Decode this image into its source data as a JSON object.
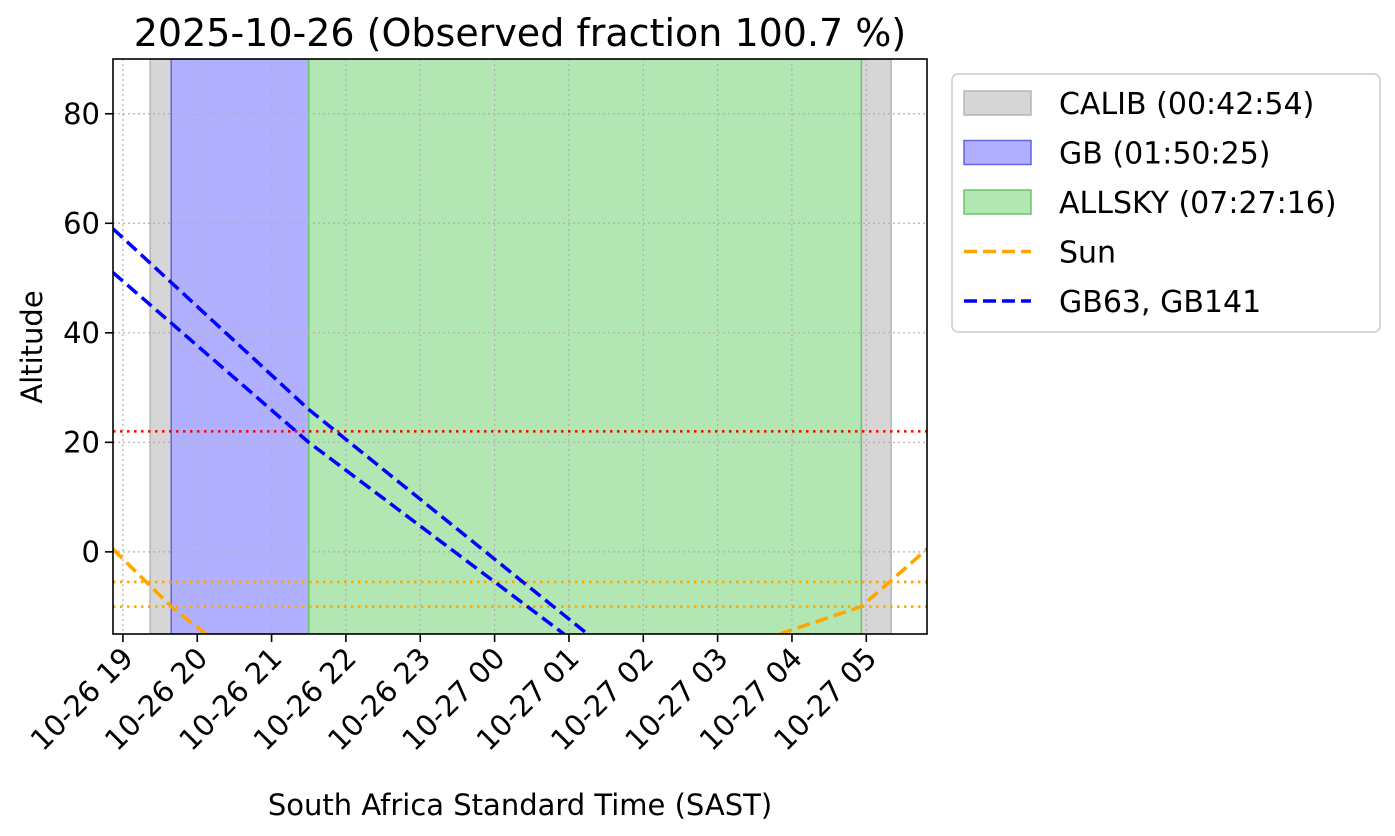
{
  "chart_data": {
    "type": "line",
    "title": "2025-10-26 (Observed fraction 100.7 %)",
    "xlabel": "South Africa Standard Time (SAST)",
    "ylabel": "Altitude",
    "x_range": [
      "2025-10-26 18:52",
      "2025-10-27 05:49"
    ],
    "ylim": [
      -15,
      90
    ],
    "grid": true,
    "legend_position": "outside right, top",
    "x_ticks": [
      {
        "t": "2025-10-26 19:00",
        "label": "10-26 19"
      },
      {
        "t": "2025-10-26 20:00",
        "label": "10-26 20"
      },
      {
        "t": "2025-10-26 21:00",
        "label": "10-26 21"
      },
      {
        "t": "2025-10-26 22:00",
        "label": "10-26 22"
      },
      {
        "t": "2025-10-26 23:00",
        "label": "10-26 23"
      },
      {
        "t": "2025-10-27 00:00",
        "label": "10-27 00"
      },
      {
        "t": "2025-10-27 01:00",
        "label": "10-27 01"
      },
      {
        "t": "2025-10-27 02:00",
        "label": "10-27 02"
      },
      {
        "t": "2025-10-27 03:00",
        "label": "10-27 03"
      },
      {
        "t": "2025-10-27 04:00",
        "label": "10-27 04"
      },
      {
        "t": "2025-10-27 05:00",
        "label": "10-27 05"
      }
    ],
    "y_ticks": [
      0,
      20,
      40,
      60,
      80
    ],
    "bands": [
      {
        "name": "CALIB (00:42:54)",
        "color": "#d6d6d6",
        "edge": "#b5b5b5",
        "intervals": [
          [
            "2025-10-26 19:22",
            "2025-10-26 19:39"
          ],
          [
            "2025-10-27 04:56",
            "2025-10-27 05:20"
          ]
        ]
      },
      {
        "name": "GB (01:50:25)",
        "color": "#b0b0ff",
        "edge": "#6464e0",
        "intervals": [
          [
            "2025-10-26 19:39",
            "2025-10-26 21:30"
          ]
        ]
      },
      {
        "name": "ALLSKY (07:27:16)",
        "color": "#b2e6b2",
        "edge": "#6cc46c",
        "intervals": [
          [
            "2025-10-26 21:30",
            "2025-10-27 04:56"
          ]
        ]
      }
    ],
    "series": [
      {
        "name": "Sun",
        "color": "#ffa500",
        "dash": "dashed",
        "segments": [
          [
            [
              "2025-10-26 18:52",
              0.5
            ],
            [
              "2025-10-26 19:39",
              -10
            ],
            [
              "2025-10-26 20:07",
              -15
            ]
          ],
          [
            [
              "2025-10-27 03:50",
              -15
            ],
            [
              "2025-10-27 04:56",
              -10
            ],
            [
              "2025-10-27 05:49",
              0.5
            ]
          ]
        ]
      },
      {
        "name": "GB63, GB141",
        "color": "#0000ff",
        "dash": "dashed",
        "segments": [
          [
            [
              "2025-10-26 18:52",
              59
            ],
            [
              "2025-10-26 21:30",
              26
            ],
            [
              "2025-10-27 01:15",
              -15
            ]
          ],
          [
            [
              "2025-10-26 18:52",
              51
            ],
            [
              "2025-10-26 21:30",
              20
            ],
            [
              "2025-10-27 00:56",
              -15
            ]
          ]
        ]
      }
    ],
    "hlines": [
      {
        "y": 22,
        "color": "#ff0000",
        "style": "dotted"
      },
      {
        "y": -5.5,
        "color": "#ffa500",
        "style": "dotted"
      },
      {
        "y": -10,
        "color": "#ffa500",
        "style": "dotted"
      }
    ]
  }
}
